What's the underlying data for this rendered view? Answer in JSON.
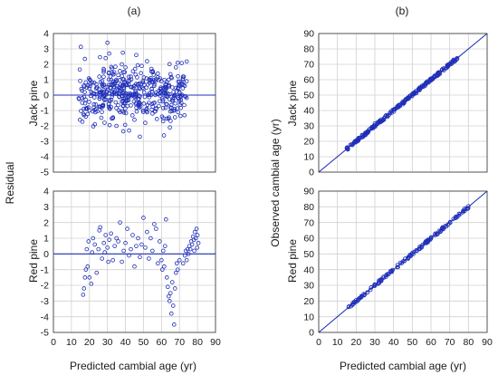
{
  "figure": {
    "label_a": "(a)",
    "label_b": "(b)",
    "residual_label": "Residual",
    "observed_label": "Observed cambial age (yr)",
    "xlabel_left": "Predicted cambial age (yr)",
    "xlabel_right": "Predicted cambial age (yr)",
    "row_jack": "Jack pine",
    "row_red": "Red pine",
    "colors": {
      "points": "#1f2fb8",
      "grid": "#d0d0d0"
    }
  },
  "chart_data": [
    {
      "id": "a_jack",
      "type": "scatter",
      "title": "(a)",
      "ylabel": "Jack pine",
      "xlim": [
        0,
        90
      ],
      "ylim": [
        -5,
        4
      ],
      "xticks": [
        0,
        10,
        20,
        30,
        40,
        50,
        60,
        70,
        80,
        90
      ],
      "yticks": [
        -5,
        -4,
        -3,
        -2,
        -1,
        0,
        1,
        2,
        3,
        4
      ],
      "show_xticks": false,
      "grid": true,
      "reference_line": {
        "kind": "horizontal",
        "y": 0
      },
      "generator": {
        "seed": 11,
        "n": 420,
        "x_range": [
          14,
          74
        ],
        "clusters": [
          [
            31,
            0.3,
            2.6
          ],
          [
            40,
            0.2,
            2.2
          ],
          [
            50,
            0.1,
            2.0
          ],
          [
            67,
            -0.2,
            1.6
          ]
        ],
        "spread": 0.85
      },
      "points": [
        [
          14.0,
          -0.2
        ],
        [
          15.5,
          0.4
        ],
        [
          16.0,
          -0.5
        ],
        [
          17.0,
          -1.3
        ],
        [
          18.0,
          -1.4
        ],
        [
          19.5,
          -0.8
        ],
        [
          20.0,
          -1.0
        ],
        [
          21.0,
          0.2
        ],
        [
          22.5,
          -0.6
        ],
        [
          23.0,
          -1.9
        ],
        [
          24.0,
          0.5
        ],
        [
          25.5,
          1.2
        ],
        [
          26.0,
          0.0
        ],
        [
          27.0,
          -0.7
        ],
        [
          28.0,
          1.6
        ],
        [
          29.0,
          2.4
        ],
        [
          30.0,
          3.4
        ],
        [
          31.0,
          2.7
        ],
        [
          32.0,
          1.0
        ],
        [
          33.0,
          -1.5
        ],
        [
          34.0,
          0.8
        ],
        [
          35.0,
          -2.0
        ],
        [
          36.0,
          1.3
        ],
        [
          37.0,
          -1.1
        ],
        [
          38.0,
          2.0
        ],
        [
          39.0,
          0.5
        ],
        [
          40.0,
          1.8
        ],
        [
          41.5,
          -0.3
        ],
        [
          42.0,
          -2.3
        ],
        [
          43.0,
          1.2
        ],
        [
          44.0,
          0.0
        ],
        [
          45.0,
          -1.6
        ],
        [
          46.0,
          2.6
        ],
        [
          47.0,
          0.7
        ],
        [
          48.0,
          -2.7
        ],
        [
          49.0,
          1.9
        ],
        [
          50.0,
          0.4
        ],
        [
          51.0,
          -1.8
        ],
        [
          52.0,
          2.2
        ],
        [
          53.0,
          -0.5
        ],
        [
          54.0,
          1.1
        ],
        [
          55.0,
          -1.2
        ],
        [
          56.0,
          0.6
        ],
        [
          57.0,
          -0.9
        ],
        [
          58.0,
          1.4
        ],
        [
          59.0,
          -0.4
        ],
        [
          60.0,
          0.9
        ],
        [
          61.0,
          -1.5
        ],
        [
          62.0,
          0.3
        ],
        [
          63.0,
          -0.6
        ],
        [
          64.0,
          1.0
        ],
        [
          65.0,
          -0.8
        ],
        [
          66.0,
          0.5
        ],
        [
          67.0,
          -1.0
        ],
        [
          68.0,
          1.8
        ],
        [
          69.0,
          2.1
        ],
        [
          70.0,
          0.2
        ],
        [
          71.0,
          -0.5
        ],
        [
          72.0,
          1.2
        ],
        [
          73.0,
          0.6
        ],
        [
          74.0,
          0.9
        ]
      ]
    },
    {
      "id": "a_red",
      "type": "scatter",
      "ylabel": "Red pine",
      "xlabel": "Predicted cambial age (yr)",
      "xlim": [
        0,
        90
      ],
      "ylim": [
        -5,
        4
      ],
      "xticks": [
        0,
        10,
        20,
        30,
        40,
        50,
        60,
        70,
        80,
        90
      ],
      "yticks": [
        -5,
        -4,
        -3,
        -2,
        -1,
        0,
        1,
        2,
        3,
        4
      ],
      "show_xticks": true,
      "grid": true,
      "reference_line": {
        "kind": "horizontal",
        "y": 0
      },
      "points": [
        [
          16.5,
          -2.6
        ],
        [
          17,
          -2.2
        ],
        [
          17.5,
          -1.5
        ],
        [
          18,
          -1.0
        ],
        [
          18.5,
          0.3
        ],
        [
          19,
          -0.8
        ],
        [
          19.5,
          0.8
        ],
        [
          20,
          -1.5
        ],
        [
          21,
          -1.9
        ],
        [
          21.5,
          0.1
        ],
        [
          22,
          1.0
        ],
        [
          23,
          0.6
        ],
        [
          24,
          -1.2
        ],
        [
          25,
          0.3
        ],
        [
          25.5,
          1.5
        ],
        [
          26,
          1.7
        ],
        [
          27,
          -0.3
        ],
        [
          28,
          0.7
        ],
        [
          28.5,
          0.1
        ],
        [
          29,
          1.2
        ],
        [
          30,
          0.4
        ],
        [
          30.5,
          -0.5
        ],
        [
          31,
          0.9
        ],
        [
          32,
          1.3
        ],
        [
          33,
          -0.4
        ],
        [
          34,
          0.5
        ],
        [
          35,
          1.0
        ],
        [
          36,
          0.8
        ],
        [
          37,
          2.0
        ],
        [
          38,
          -0.5
        ],
        [
          39,
          0.2
        ],
        [
          40,
          0.7
        ],
        [
          41,
          1.6
        ],
        [
          42,
          -0.1
        ],
        [
          43,
          0.3
        ],
        [
          44,
          1.2
        ],
        [
          45,
          -0.8
        ],
        [
          46,
          0.5
        ],
        [
          47,
          1.0
        ],
        [
          48,
          -0.2
        ],
        [
          49,
          0.6
        ],
        [
          50,
          2.3
        ],
        [
          51,
          0.4
        ],
        [
          52,
          1.4
        ],
        [
          53,
          -0.3
        ],
        [
          54,
          1.0
        ],
        [
          55,
          0.2
        ],
        [
          56,
          1.9
        ],
        [
          57,
          1.6
        ],
        [
          58,
          -0.6
        ],
        [
          59,
          0.8
        ],
        [
          60,
          -0.4
        ],
        [
          60.5,
          -1.0
        ],
        [
          61,
          0.2
        ],
        [
          61.5,
          -0.8
        ],
        [
          62,
          0.5
        ],
        [
          62.5,
          2.2
        ],
        [
          63,
          -1.5
        ],
        [
          63.5,
          -2.1
        ],
        [
          64,
          -2.7
        ],
        [
          64.5,
          -3.0
        ],
        [
          65,
          -2.5
        ],
        [
          65.5,
          -3.8
        ],
        [
          66,
          -1.8
        ],
        [
          66.5,
          -3.3
        ],
        [
          67,
          -4.5
        ],
        [
          67.5,
          -2.2
        ],
        [
          68,
          -1.2
        ],
        [
          68.5,
          -0.6
        ],
        [
          69,
          -1.0
        ],
        [
          70,
          -0.4
        ],
        [
          72,
          -0.6
        ],
        [
          73,
          -0.1
        ],
        [
          73.5,
          0.2
        ],
        [
          74,
          -0.4
        ],
        [
          74.5,
          0.3
        ],
        [
          75,
          0.0
        ],
        [
          75.5,
          0.5
        ],
        [
          76,
          0.3
        ],
        [
          76.5,
          0.8
        ],
        [
          77,
          0.6
        ],
        [
          77.5,
          1.1
        ],
        [
          78,
          0.9
        ],
        [
          78.5,
          1.4
        ],
        [
          79,
          1.0
        ],
        [
          79.5,
          1.6
        ],
        [
          80,
          1.2
        ],
        [
          80.5,
          0.7
        ],
        [
          79.8,
          0.4
        ],
        [
          78.2,
          0.2
        ]
      ]
    },
    {
      "id": "b_jack",
      "type": "scatter",
      "title": "(b)",
      "ylabel": "Jack pine",
      "xlim": [
        0,
        90
      ],
      "ylim": [
        0,
        90
      ],
      "xticks": [
        0,
        10,
        20,
        30,
        40,
        50,
        60,
        70,
        80,
        90
      ],
      "yticks": [
        0,
        10,
        20,
        30,
        40,
        50,
        60,
        70,
        80,
        90
      ],
      "show_xticks": false,
      "grid": true,
      "reference_line": {
        "kind": "one_to_one"
      },
      "points": [
        [
          15,
          15.8
        ],
        [
          18,
          17.6
        ],
        [
          21,
          21.4
        ],
        [
          24,
          23.2
        ],
        [
          27,
          27.8
        ],
        [
          30,
          31.6
        ],
        [
          33,
          32.4
        ],
        [
          36,
          36.9
        ],
        [
          39,
          38.5
        ],
        [
          42,
          42.7
        ],
        [
          45,
          44.1
        ],
        [
          48,
          48.6
        ],
        [
          51,
          50.8
        ],
        [
          54,
          54.9
        ],
        [
          57,
          56.2
        ],
        [
          60,
          60.7
        ],
        [
          63,
          62.5
        ],
        [
          66,
          66.8
        ],
        [
          69,
          69.2
        ],
        [
          72,
          72.9
        ],
        [
          74,
          73.6
        ]
      ]
    },
    {
      "id": "b_red",
      "type": "scatter",
      "ylabel": "Red pine",
      "xlabel": "Predicted cambial age (yr)",
      "xlim": [
        0,
        90
      ],
      "ylim": [
        0,
        90
      ],
      "xticks": [
        0,
        10,
        20,
        30,
        40,
        50,
        60,
        70,
        80,
        90
      ],
      "yticks": [
        0,
        10,
        20,
        30,
        40,
        50,
        60,
        70,
        80,
        90
      ],
      "show_xticks": true,
      "grid": true,
      "reference_line": {
        "kind": "one_to_one"
      },
      "points": [
        [
          16,
          16.2
        ],
        [
          18,
          17.5
        ],
        [
          20,
          20.6
        ],
        [
          22,
          21.8
        ],
        [
          24,
          24.4
        ],
        [
          26,
          25.5
        ],
        [
          28,
          28.6
        ],
        [
          30,
          29.7
        ],
        [
          33,
          33.4
        ],
        [
          36,
          35.5
        ],
        [
          39,
          39.3
        ],
        [
          42,
          41.6
        ],
        [
          45,
          45.2
        ],
        [
          48,
          47.8
        ],
        [
          51,
          51.3
        ],
        [
          54,
          53.6
        ],
        [
          57,
          57.4
        ],
        [
          60,
          59.8
        ],
        [
          63,
          62.3
        ],
        [
          66,
          66.5
        ],
        [
          69,
          68.6
        ],
        [
          72,
          72.3
        ],
        [
          75,
          75.6
        ],
        [
          78,
          78.8
        ],
        [
          80,
          80.4
        ]
      ]
    }
  ]
}
